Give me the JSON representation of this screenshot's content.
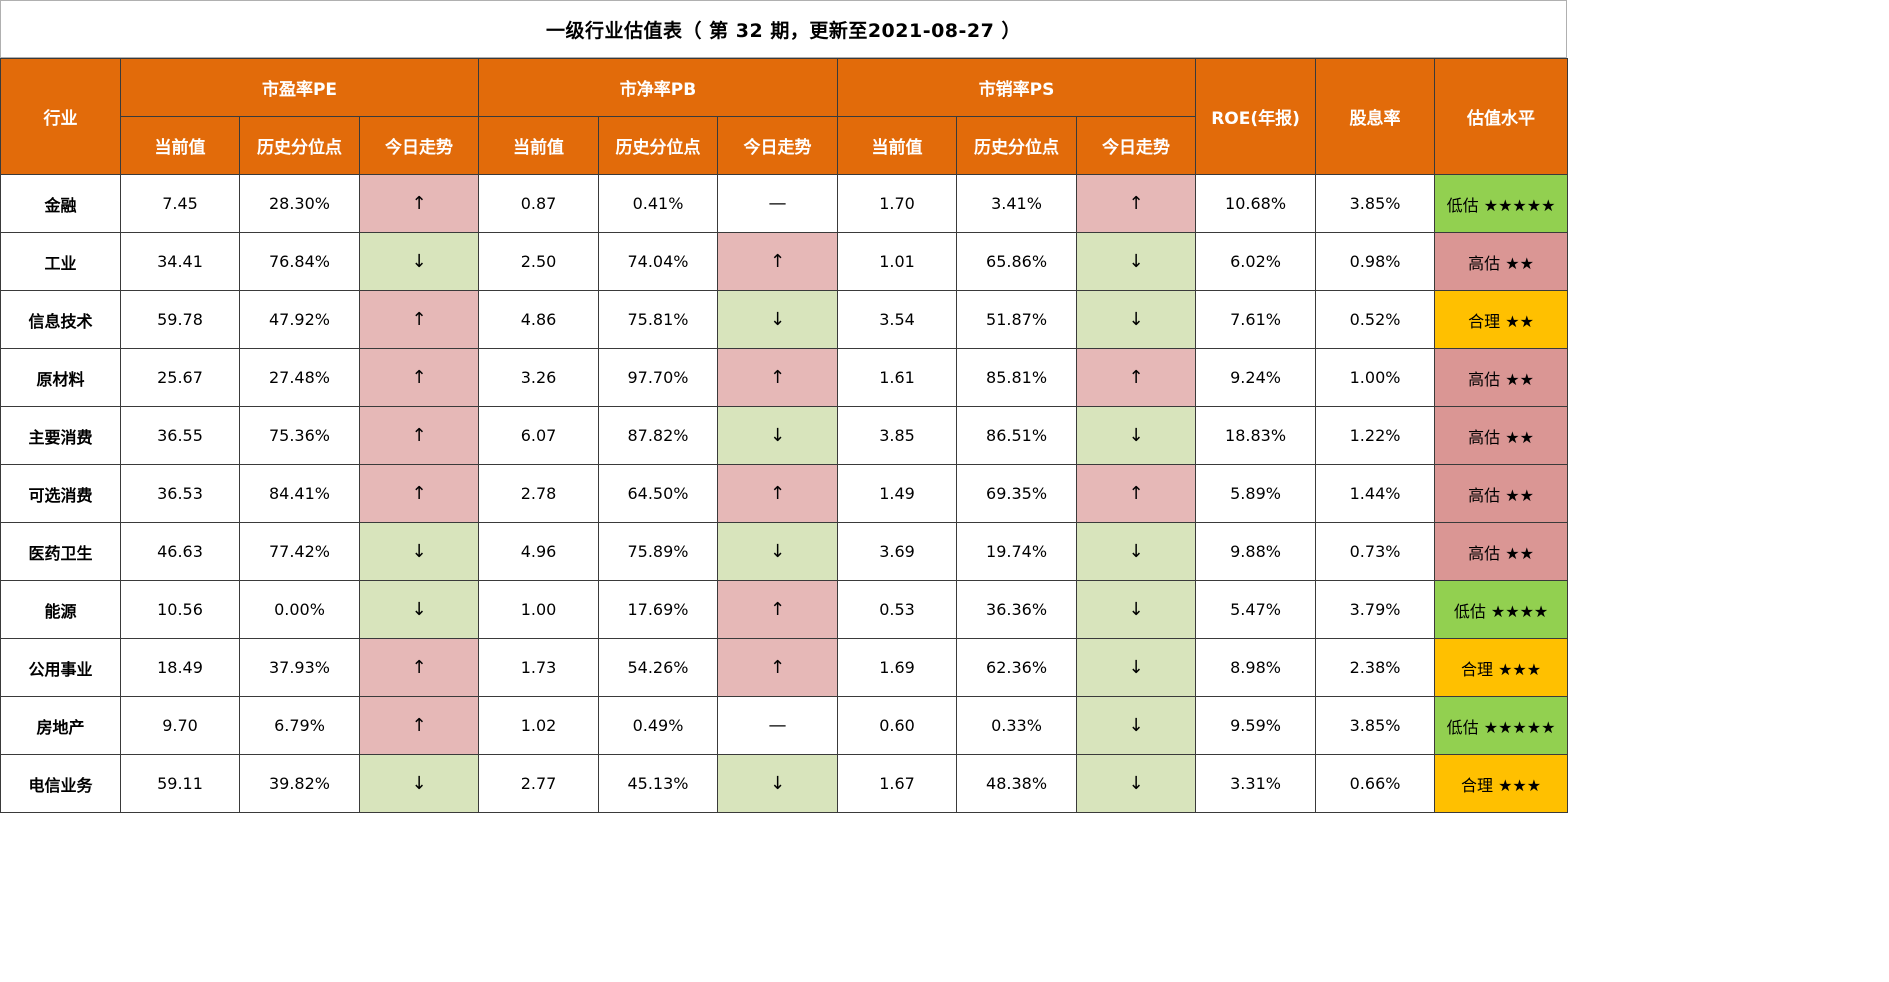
{
  "title": "一级行业估值表（ 第 32 期，更新至2021-08-27 ）",
  "headers": {
    "industry": "行业",
    "pe_group": "市盈率PE",
    "pb_group": "市净率PB",
    "ps_group": "市销率PS",
    "roe": "ROE(年报)",
    "dividend": "股息率",
    "valuation": "估值水平",
    "current": "当前值",
    "percentile": "历史分位点",
    "trend": "今日走势"
  },
  "colors": {
    "header_bg": "#e26b0a",
    "trend_up_bg": "#e6b8b7",
    "trend_down_bg": "#d8e4bc",
    "level_low_bg": "#92d050",
    "level_high_bg": "#da9694",
    "level_fair_bg": "#ffc000"
  },
  "rows": [
    {
      "industry": "金融",
      "pe": "7.45",
      "pe_pct": "28.30%",
      "pe_trend": "↑",
      "pb": "0.87",
      "pb_pct": "0.41%",
      "pb_trend": "—",
      "ps": "1.70",
      "ps_pct": "3.41%",
      "ps_trend": "↑",
      "roe": "10.68%",
      "dividend": "3.85%",
      "level": "低估 ★★★★★",
      "level_type": "low"
    },
    {
      "industry": "工业",
      "pe": "34.41",
      "pe_pct": "76.84%",
      "pe_trend": "↓",
      "pb": "2.50",
      "pb_pct": "74.04%",
      "pb_trend": "↑",
      "ps": "1.01",
      "ps_pct": "65.86%",
      "ps_trend": "↓",
      "roe": "6.02%",
      "dividend": "0.98%",
      "level": "高估 ★★",
      "level_type": "high"
    },
    {
      "industry": "信息技术",
      "pe": "59.78",
      "pe_pct": "47.92%",
      "pe_trend": "↑",
      "pb": "4.86",
      "pb_pct": "75.81%",
      "pb_trend": "↓",
      "ps": "3.54",
      "ps_pct": "51.87%",
      "ps_trend": "↓",
      "roe": "7.61%",
      "dividend": "0.52%",
      "level": "合理 ★★",
      "level_type": "fair"
    },
    {
      "industry": "原材料",
      "pe": "25.67",
      "pe_pct": "27.48%",
      "pe_trend": "↑",
      "pb": "3.26",
      "pb_pct": "97.70%",
      "pb_trend": "↑",
      "ps": "1.61",
      "ps_pct": "85.81%",
      "ps_trend": "↑",
      "roe": "9.24%",
      "dividend": "1.00%",
      "level": "高估 ★★",
      "level_type": "high"
    },
    {
      "industry": "主要消费",
      "pe": "36.55",
      "pe_pct": "75.36%",
      "pe_trend": "↑",
      "pb": "6.07",
      "pb_pct": "87.82%",
      "pb_trend": "↓",
      "ps": "3.85",
      "ps_pct": "86.51%",
      "ps_trend": "↓",
      "roe": "18.83%",
      "dividend": "1.22%",
      "level": "高估 ★★",
      "level_type": "high"
    },
    {
      "industry": "可选消费",
      "pe": "36.53",
      "pe_pct": "84.41%",
      "pe_trend": "↑",
      "pb": "2.78",
      "pb_pct": "64.50%",
      "pb_trend": "↑",
      "ps": "1.49",
      "ps_pct": "69.35%",
      "ps_trend": "↑",
      "roe": "5.89%",
      "dividend": "1.44%",
      "level": "高估 ★★",
      "level_type": "high"
    },
    {
      "industry": "医药卫生",
      "pe": "46.63",
      "pe_pct": "77.42%",
      "pe_trend": "↓",
      "pb": "4.96",
      "pb_pct": "75.89%",
      "pb_trend": "↓",
      "ps": "3.69",
      "ps_pct": "19.74%",
      "ps_trend": "↓",
      "roe": "9.88%",
      "dividend": "0.73%",
      "level": "高估 ★★",
      "level_type": "high"
    },
    {
      "industry": "能源",
      "pe": "10.56",
      "pe_pct": "0.00%",
      "pe_trend": "↓",
      "pb": "1.00",
      "pb_pct": "17.69%",
      "pb_trend": "↑",
      "ps": "0.53",
      "ps_pct": "36.36%",
      "ps_trend": "↓",
      "roe": "5.47%",
      "dividend": "3.79%",
      "level": "低估 ★★★★",
      "level_type": "low"
    },
    {
      "industry": "公用事业",
      "pe": "18.49",
      "pe_pct": "37.93%",
      "pe_trend": "↑",
      "pb": "1.73",
      "pb_pct": "54.26%",
      "pb_trend": "↑",
      "ps": "1.69",
      "ps_pct": "62.36%",
      "ps_trend": "↓",
      "roe": "8.98%",
      "dividend": "2.38%",
      "level": "合理 ★★★",
      "level_type": "fair"
    },
    {
      "industry": "房地产",
      "pe": "9.70",
      "pe_pct": "6.79%",
      "pe_trend": "↑",
      "pb": "1.02",
      "pb_pct": "0.49%",
      "pb_trend": "—",
      "ps": "0.60",
      "ps_pct": "0.33%",
      "ps_trend": "↓",
      "roe": "9.59%",
      "dividend": "3.85%",
      "level": "低估 ★★★★★",
      "level_type": "low"
    },
    {
      "industry": "电信业务",
      "pe": "59.11",
      "pe_pct": "39.82%",
      "pe_trend": "↓",
      "pb": "2.77",
      "pb_pct": "45.13%",
      "pb_trend": "↓",
      "ps": "1.67",
      "ps_pct": "48.38%",
      "ps_trend": "↓",
      "roe": "3.31%",
      "dividend": "0.66%",
      "level": "合理 ★★★",
      "level_type": "fair"
    }
  ]
}
